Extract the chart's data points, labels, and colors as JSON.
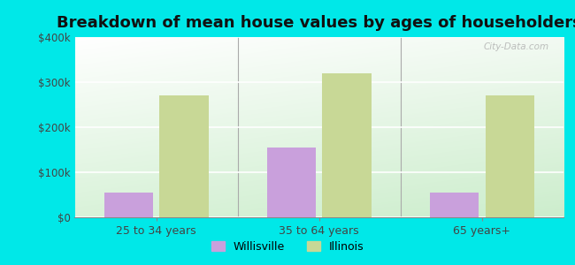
{
  "title": "Breakdown of mean house values by ages of householders",
  "categories": [
    "25 to 34 years",
    "35 to 64 years",
    "65 years+"
  ],
  "willisville_values": [
    55000,
    155000,
    55000
  ],
  "illinois_values": [
    270000,
    320000,
    270000
  ],
  "willisville_color": "#c9a0dc",
  "illinois_color": "#c8d896",
  "background_color": "#00e8e8",
  "ylim": [
    0,
    400000
  ],
  "yticks": [
    0,
    100000,
    200000,
    300000,
    400000
  ],
  "ytick_labels": [
    "$0",
    "$100k",
    "$200k",
    "$300k",
    "$400k"
  ],
  "bar_width": 0.3,
  "legend_labels": [
    "Willisville",
    "Illinois"
  ],
  "title_fontsize": 13,
  "watermark": "City-Data.com"
}
